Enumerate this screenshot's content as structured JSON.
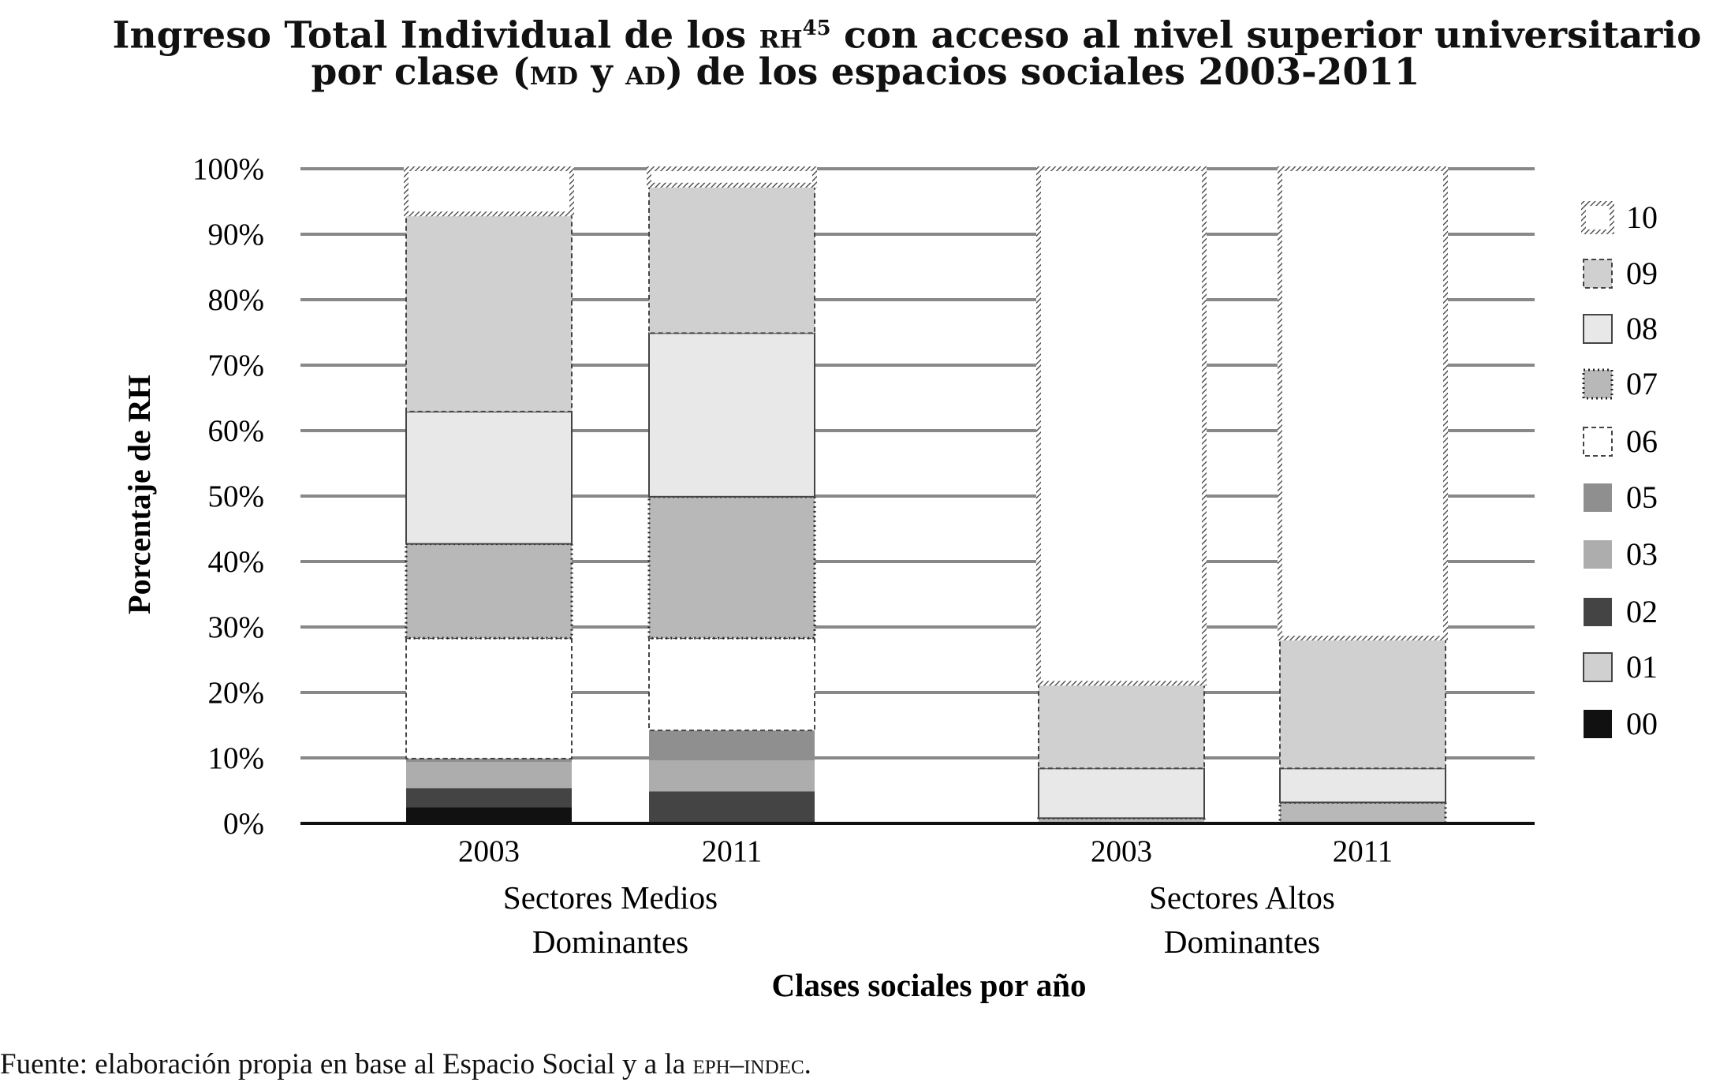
{
  "title": {
    "line1_a": "Ingreso Total Individual de los ",
    "line1_sc": "RH",
    "line1_sup": "45",
    "line1_b": " con acceso al nivel superior universitario",
    "line2_a": "por clase (",
    "line2_sc1": "MD",
    "line2_mid": " y ",
    "line2_sc2": "AD",
    "line2_b": ") de los espacios sociales 2003-2011"
  },
  "footer": {
    "text_a": "Fuente: elaboración propia en base al Espacio Social y a la ",
    "text_sc": "EPH–INDEC",
    "text_b": "."
  },
  "chart_data": {
    "type": "bar",
    "stacked": true,
    "ylabel": "Porcentaje de RH",
    "xlabel": "Clases sociales por año",
    "ylim": [
      0,
      100
    ],
    "yticks": [
      "0%",
      "10%",
      "20%",
      "30%",
      "40%",
      "50%",
      "60%",
      "70%",
      "80%",
      "90%",
      "100%"
    ],
    "grid": true,
    "legend_placement": "right",
    "groups": [
      {
        "label_line1": "Sectores Medios",
        "label_line2": "Dominantes",
        "categories": [
          "2003",
          "2011"
        ]
      },
      {
        "label_line1": "Sectores Altos",
        "label_line2": "Dominantes",
        "categories": [
          "2003",
          "2011"
        ]
      }
    ],
    "categories": [
      "SMD 2003",
      "SMD 2011",
      "SAD 2003",
      "SAD 2011"
    ],
    "series": [
      {
        "name": "00",
        "fill": "#111111",
        "border": "none",
        "values": [
          2.5,
          0,
          0,
          0
        ]
      },
      {
        "name": "01",
        "fill": "#d0d0d0",
        "border": "solid",
        "values": [
          0,
          0,
          0,
          0
        ]
      },
      {
        "name": "02",
        "fill": "#444444",
        "border": "none",
        "values": [
          2.9,
          4.9,
          0,
          0
        ]
      },
      {
        "name": "03",
        "fill": "#adadad",
        "border": "none",
        "values": [
          4.0,
          4.7,
          0,
          0
        ]
      },
      {
        "name": "05",
        "fill": "#8f8f8f",
        "border": "none",
        "values": [
          0.5,
          4.6,
          0,
          0
        ]
      },
      {
        "name": "06",
        "fill": "#ffffff",
        "border": "dashed",
        "values": [
          18.4,
          14.1,
          0,
          0
        ]
      },
      {
        "name": "07",
        "fill": "#b8b8b8",
        "border": "dotted",
        "values": [
          14.4,
          21.6,
          0.8,
          3.2
        ]
      },
      {
        "name": "08",
        "fill": "#e8e8e8",
        "border": "solid",
        "values": [
          20.2,
          25.0,
          7.6,
          5.2
        ]
      },
      {
        "name": "09",
        "fill": "#d0d0d0",
        "border": "dashed",
        "values": [
          30.2,
          22.6,
          13.0,
          19.9
        ]
      },
      {
        "name": "10",
        "fill": "#ffffff",
        "border": "hatched",
        "values": [
          6.9,
          2.5,
          78.6,
          71.7
        ]
      }
    ]
  }
}
